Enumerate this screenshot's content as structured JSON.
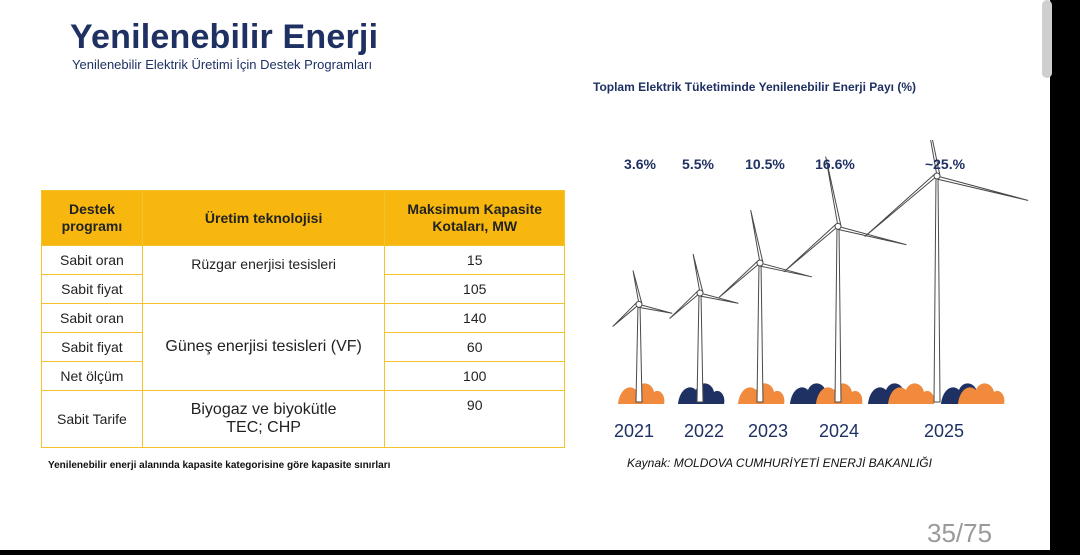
{
  "slide": {
    "title": "Yenilenebilir Enerji",
    "subtitle": "Yenilenebilir Elektrik Üretimi İçin Destek Programları",
    "page_number": "35/75"
  },
  "table": {
    "headers": [
      "Destek programı",
      "Üretim teknolojisi",
      "Maksimum Kapasite Kotaları, MW"
    ],
    "programs": [
      "Sabit oran",
      "Sabit fiyat",
      "Sabit oran",
      "Sabit fiyat",
      "Net ölçüm",
      "Sabit Tarife"
    ],
    "technologies": [
      "Rüzgar enerjisi tesisleri",
      "Güneş enerjisi tesisleri (VF)",
      "Biyogaz ve biyokütle TEC; CHP"
    ],
    "capacities": [
      "15",
      "105",
      "140",
      "60",
      "100",
      "90"
    ],
    "note": "Yenilenebilir enerji alanında kapasite kategorisine göre kapasite sınırları"
  },
  "chart": {
    "title": "Toplam Elektrik Tüketiminde Yenilenebilir Enerji Payı (%)",
    "source": "Kaynak: MOLDOVA CUMHURİYETİ ENERJİ BAKANLIĞI",
    "colors": {
      "orange": "#f28a3d",
      "navy": "#1f3163"
    }
  },
  "chart_data": {
    "type": "bar",
    "title": "Toplam Elektrik Tüketiminde Yenilenebilir Enerji Payı (%)",
    "categories": [
      "2021",
      "2022",
      "2023",
      "2024",
      "2025"
    ],
    "values": [
      3.6,
      5.5,
      10.5,
      16.6,
      25
    ],
    "value_labels": [
      "3.6%",
      "5.5%",
      "10.5%",
      "16.6%",
      "~25.%"
    ]
  }
}
